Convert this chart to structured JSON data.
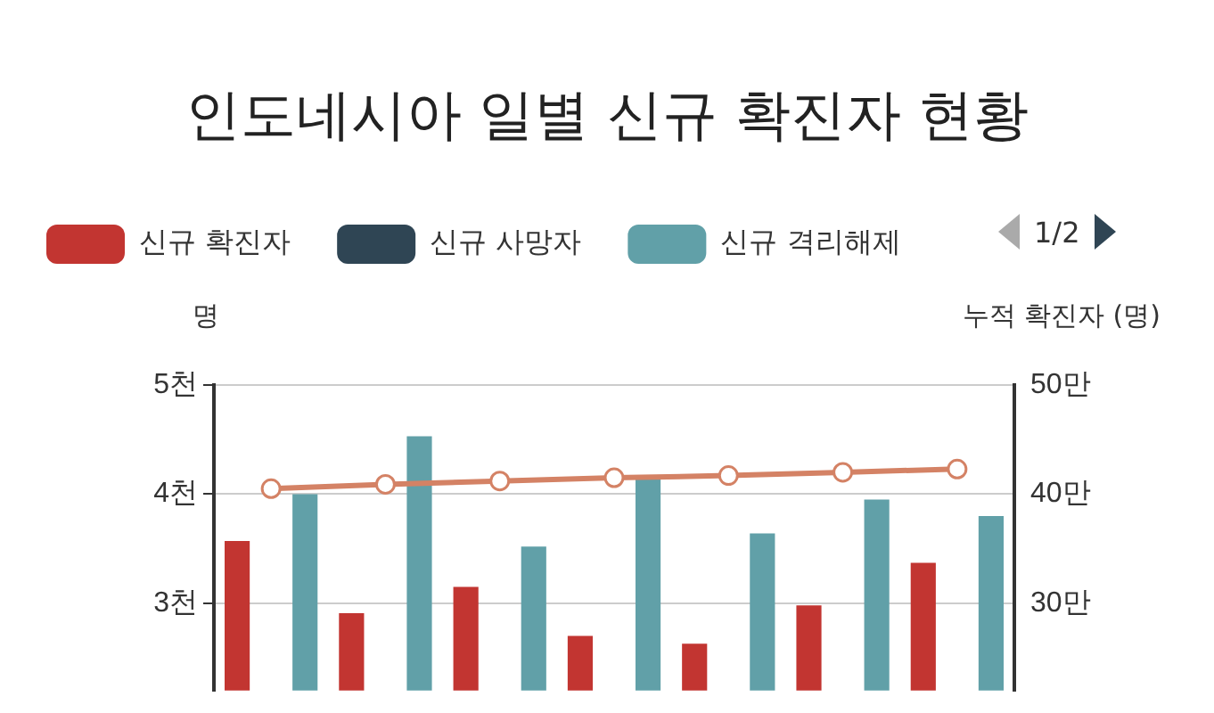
{
  "chart_data": {
    "type": "bar",
    "title": "인도네시아 일별 신규 확진자 현황",
    "ylabel": "명",
    "y2label": "누적 확진자 (명)",
    "categories": [
      null,
      null,
      null,
      null,
      null,
      null,
      null
    ],
    "series": [
      {
        "name": "신규 확진자",
        "color": "#c23531",
        "values": [
          3.57,
          2.91,
          3.15,
          2.7,
          2.63,
          2.98,
          3.37
        ]
      },
      {
        "name": "신규 사망자",
        "color": "#2f4554",
        "values": [
          null,
          null,
          null,
          null,
          null,
          null,
          null
        ]
      },
      {
        "name": "신규 격리해제",
        "color": "#61a0a8",
        "values": [
          4.0,
          4.53,
          3.52,
          4.16,
          3.64,
          3.95,
          3.8
        ]
      },
      {
        "type": "line",
        "axis": "y2",
        "color": "#d48265",
        "marker": "circle",
        "values": [
          40.5,
          40.9,
          41.2,
          41.5,
          41.7,
          42.0,
          42.3
        ]
      }
    ],
    "ylim": [
      2.2,
      5
    ],
    "yticks": [
      {
        "value": 3,
        "label": "3천"
      },
      {
        "value": 4,
        "label": "4천"
      },
      {
        "value": 5,
        "label": "5천"
      }
    ],
    "y2lim": [
      22,
      50
    ],
    "y2ticks": [
      {
        "value": 30,
        "label": "30만"
      },
      {
        "value": 40,
        "label": "40만"
      },
      {
        "value": 50,
        "label": "50만"
      }
    ],
    "grid": "y",
    "legend": "top",
    "tick_labels": "y",
    "annotations": [
      "1/2"
    ]
  }
}
